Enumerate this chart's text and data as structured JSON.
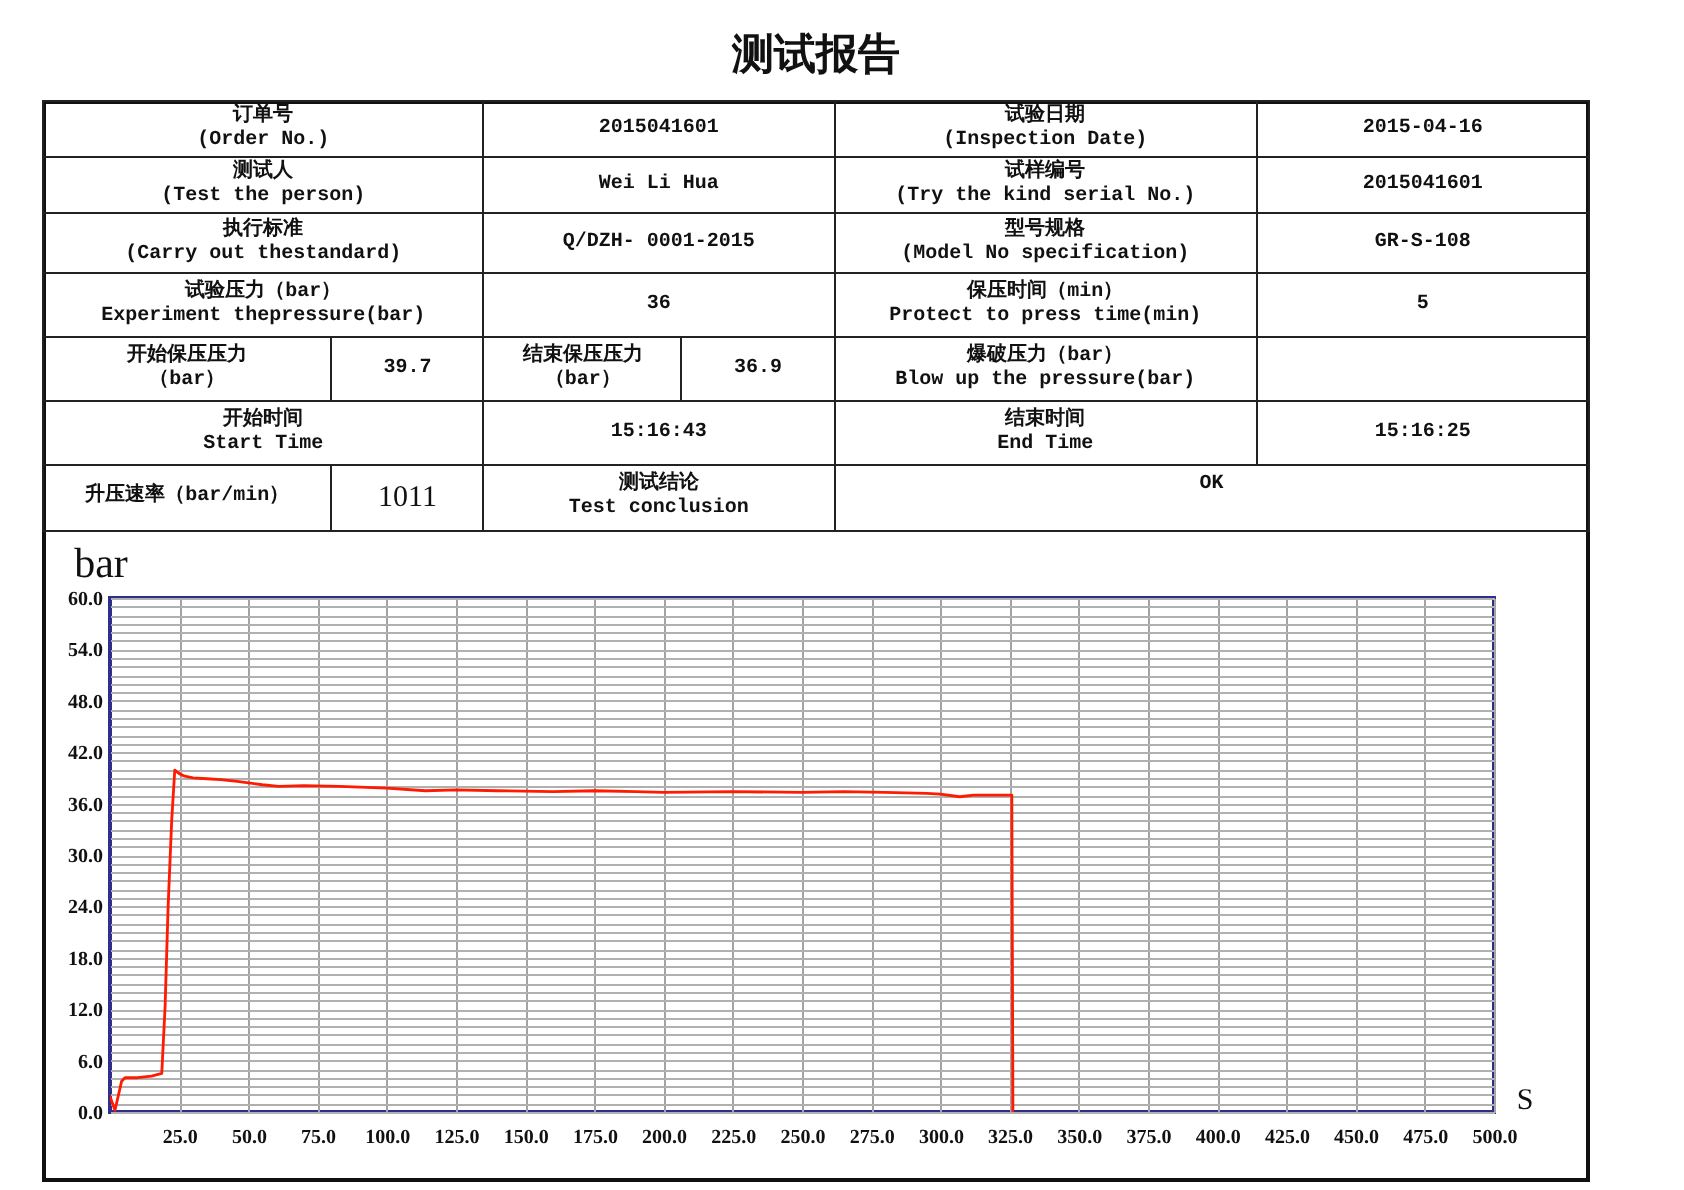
{
  "chart_data": [
    {
      "type": "other",
      "title": "测试报告",
      "annotations": [
        "订单号",
        "(Order No.)",
        "2015041601",
        "试验日期",
        "(Inspection Date)",
        "2015-04-16",
        "测试人",
        "(Test the person)",
        "Wei Li Hua",
        "试样编号",
        "(Try the kind serial No.)",
        "2015041601",
        "执行标准",
        "(Carry out thestandard)",
        "Q/DZH- 0001-2015",
        "型号规格",
        "(Model No specification)",
        "GR-S-108",
        "试验压力（bar）",
        "Experiment thepressure(bar)",
        "36",
        "保压时间（min）",
        "Protect to press time(min)",
        "5",
        "开始保压压力",
        "（bar）",
        "39.7",
        "结束保压压力",
        "（bar）",
        "36.9",
        "爆破压力（bar）",
        "Blow up the pressure(bar)",
        "开始时间",
        "Start Time",
        "15:16:43",
        "结束时间",
        "End Time",
        "15:16:25",
        "升压速率（bar/min）",
        "1011",
        "测试结论",
        "Test conclusion",
        "OK"
      ]
    },
    {
      "type": "line",
      "xlabel": "S",
      "ylabel": "bar",
      "color": "#ff1a00",
      "x": [
        0,
        1.8,
        4.2,
        5.4,
        10,
        15,
        18.7,
        19.9,
        21,
        22.3,
        23.4,
        25,
        27,
        30,
        35,
        40,
        46,
        55,
        61,
        70,
        83,
        100,
        114,
        125,
        140,
        160,
        175,
        190,
        200,
        225,
        250,
        265,
        280,
        295,
        300,
        307,
        312,
        320,
        325.8,
        326.2
      ],
      "values": [
        1.8,
        0.2,
        3.6,
        4.0,
        4.0,
        4.2,
        4.5,
        12.3,
        24.0,
        34.1,
        39.9,
        39.5,
        39.2,
        39.0,
        38.9,
        38.8,
        38.6,
        38.2,
        38.0,
        38.1,
        38.0,
        37.8,
        37.5,
        37.6,
        37.5,
        37.4,
        37.5,
        37.4,
        37.3,
        37.4,
        37.3,
        37.4,
        37.3,
        37.2,
        37.1,
        36.8,
        37.0,
        37.0,
        37.0,
        0
      ],
      "xlim": [
        0,
        500
      ],
      "ylim": [
        0,
        60
      ],
      "xticks": [
        {
          "value": 25,
          "label": "25.0"
        },
        {
          "value": 50,
          "label": "50.0"
        },
        {
          "value": 75,
          "label": "75.0"
        },
        {
          "value": 100,
          "label": "100.0"
        },
        {
          "value": 125,
          "label": "125.0"
        },
        {
          "value": 150,
          "label": "150.0"
        },
        {
          "value": 175,
          "label": "175.0"
        },
        {
          "value": 200,
          "label": "200.0"
        },
        {
          "value": 225,
          "label": "225.0"
        },
        {
          "value": 250,
          "label": "250.0"
        },
        {
          "value": 275,
          "label": "275.0"
        },
        {
          "value": 300,
          "label": "300.0"
        },
        {
          "value": 325,
          "label": "325.0"
        },
        {
          "value": 350,
          "label": "350.0"
        },
        {
          "value": 375,
          "label": "375.0"
        },
        {
          "value": 400,
          "label": "400.0"
        },
        {
          "value": 425,
          "label": "425.0"
        },
        {
          "value": 450,
          "label": "450.0"
        },
        {
          "value": 475,
          "label": "475.0"
        },
        {
          "value": 500,
          "label": "500.0"
        }
      ],
      "yticks": [
        {
          "value": 0,
          "label": "0.0"
        },
        {
          "value": 1,
          "label": null
        },
        {
          "value": 2,
          "label": null
        },
        {
          "value": 3,
          "label": null
        },
        {
          "value": 4,
          "label": null
        },
        {
          "value": 5,
          "label": null
        },
        {
          "value": 6,
          "label": "6.0"
        },
        {
          "value": 7,
          "label": null
        },
        {
          "value": 8,
          "label": null
        },
        {
          "value": 9,
          "label": null
        },
        {
          "value": 10,
          "label": null
        },
        {
          "value": 11,
          "label": null
        },
        {
          "value": 12,
          "label": "12.0"
        },
        {
          "value": 13,
          "label": null
        },
        {
          "value": 14,
          "label": null
        },
        {
          "value": 15,
          "label": null
        },
        {
          "value": 16,
          "label": null
        },
        {
          "value": 17,
          "label": null
        },
        {
          "value": 18,
          "label": "18.0"
        },
        {
          "value": 19,
          "label": null
        },
        {
          "value": 20,
          "label": null
        },
        {
          "value": 21,
          "label": null
        },
        {
          "value": 22,
          "label": null
        },
        {
          "value": 23,
          "label": null
        },
        {
          "value": 24,
          "label": "24.0"
        },
        {
          "value": 25,
          "label": null
        },
        {
          "value": 26,
          "label": null
        },
        {
          "value": 27,
          "label": null
        },
        {
          "value": 28,
          "label": null
        },
        {
          "value": 29,
          "label": null
        },
        {
          "value": 30,
          "label": "30.0"
        },
        {
          "value": 31,
          "label": null
        },
        {
          "value": 32,
          "label": null
        },
        {
          "value": 33,
          "label": null
        },
        {
          "value": 34,
          "label": null
        },
        {
          "value": 35,
          "label": null
        },
        {
          "value": 36,
          "label": "36.0"
        },
        {
          "value": 37,
          "label": null
        },
        {
          "value": 38,
          "label": null
        },
        {
          "value": 39,
          "label": null
        },
        {
          "value": 40,
          "label": null
        },
        {
          "value": 41,
          "label": null
        },
        {
          "value": 42,
          "label": "42.0"
        },
        {
          "value": 43,
          "label": null
        },
        {
          "value": 44,
          "label": null
        },
        {
          "value": 45,
          "label": null
        },
        {
          "value": 46,
          "label": null
        },
        {
          "value": 47,
          "label": null
        },
        {
          "value": 48,
          "label": "48.0"
        },
        {
          "value": 49,
          "label": null
        },
        {
          "value": 50,
          "label": null
        },
        {
          "value": 51,
          "label": null
        },
        {
          "value": 52,
          "label": null
        },
        {
          "value": 53,
          "label": null
        },
        {
          "value": 54,
          "label": "54.0"
        },
        {
          "value": 55,
          "label": null
        },
        {
          "value": 56,
          "label": null
        },
        {
          "value": 57,
          "label": null
        },
        {
          "value": 58,
          "label": null
        },
        {
          "value": 59,
          "label": null
        },
        {
          "value": 60,
          "label": "60.0"
        }
      ],
      "grid": true
    }
  ]
}
